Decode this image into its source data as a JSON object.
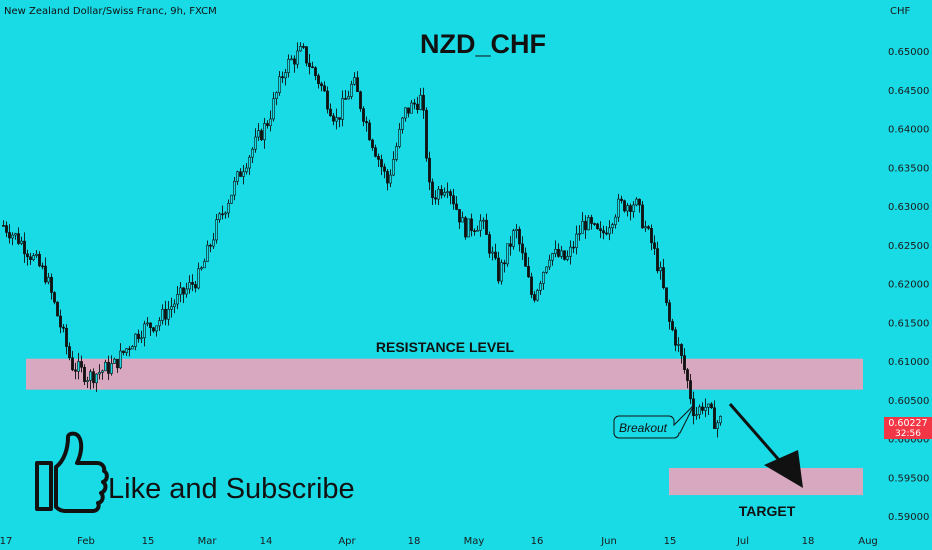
{
  "chart_data": {
    "type": "candlestick",
    "legend_text": "New Zealand Dollar/Swiss Franc, 9h, FXCM",
    "title": "NZD_CHF",
    "currency_label": "CHF",
    "y_ticks": [
      "0.65000",
      "0.64500",
      "0.64000",
      "0.63500",
      "0.63000",
      "0.62500",
      "0.62000",
      "0.61500",
      "0.61000",
      "0.60500",
      "0.60000",
      "0.59500",
      "0.59000"
    ],
    "y_tick_values": [
      0.65,
      0.645,
      0.64,
      0.635,
      0.63,
      0.625,
      0.62,
      0.615,
      0.61,
      0.605,
      0.6,
      0.595,
      0.59
    ],
    "ylim": [
      0.5875,
      0.6525
    ],
    "x_ticks": [
      "17",
      "Feb",
      "15",
      "Mar",
      "14",
      "Apr",
      "18",
      "May",
      "16",
      "Jun",
      "15",
      "Jul",
      "18",
      "Aug"
    ],
    "current_price": "0.60227",
    "countdown": "32:56",
    "price_anchors": [
      [
        0.0,
        0.6275
      ],
      [
        0.02,
        0.6255
      ],
      [
        0.05,
        0.621
      ],
      [
        0.08,
        0.6095
      ],
      [
        0.1,
        0.608
      ],
      [
        0.13,
        0.6095
      ],
      [
        0.16,
        0.614
      ],
      [
        0.18,
        0.615
      ],
      [
        0.2,
        0.6175
      ],
      [
        0.23,
        0.621
      ],
      [
        0.25,
        0.6275
      ],
      [
        0.28,
        0.635
      ],
      [
        0.31,
        0.641
      ],
      [
        0.33,
        0.648
      ],
      [
        0.35,
        0.65
      ],
      [
        0.37,
        0.646
      ],
      [
        0.39,
        0.641
      ],
      [
        0.41,
        0.646
      ],
      [
        0.43,
        0.639
      ],
      [
        0.45,
        0.633
      ],
      [
        0.47,
        0.642
      ],
      [
        0.49,
        0.644
      ],
      [
        0.5,
        0.631
      ],
      [
        0.52,
        0.633
      ],
      [
        0.54,
        0.627
      ],
      [
        0.56,
        0.628
      ],
      [
        0.58,
        0.621
      ],
      [
        0.6,
        0.627
      ],
      [
        0.62,
        0.618
      ],
      [
        0.64,
        0.624
      ],
      [
        0.66,
        0.623
      ],
      [
        0.68,
        0.628
      ],
      [
        0.7,
        0.626
      ],
      [
        0.72,
        0.63
      ],
      [
        0.74,
        0.6305
      ],
      [
        0.76,
        0.625
      ],
      [
        0.77,
        0.621
      ],
      [
        0.78,
        0.615
      ],
      [
        0.79,
        0.612
      ],
      [
        0.8,
        0.608
      ],
      [
        0.81,
        0.603
      ],
      [
        0.82,
        0.6045
      ],
      [
        0.835,
        0.602
      ],
      [
        0.84,
        0.6023
      ]
    ],
    "zones": [
      {
        "name": "resistance",
        "label": "RESISTANCE LEVEL",
        "from": 0.6063,
        "to": 0.6103,
        "color": "#d8a8c1"
      },
      {
        "name": "target",
        "label": "TARGET",
        "from": 0.5927,
        "to": 0.5962,
        "color": "#d8a8c1"
      }
    ],
    "annotation": "Breakout",
    "cta": "Like and Subscribe",
    "colors": {
      "background": "#19dbe6",
      "candle": "#111111",
      "price_tag": "#f23645"
    }
  }
}
